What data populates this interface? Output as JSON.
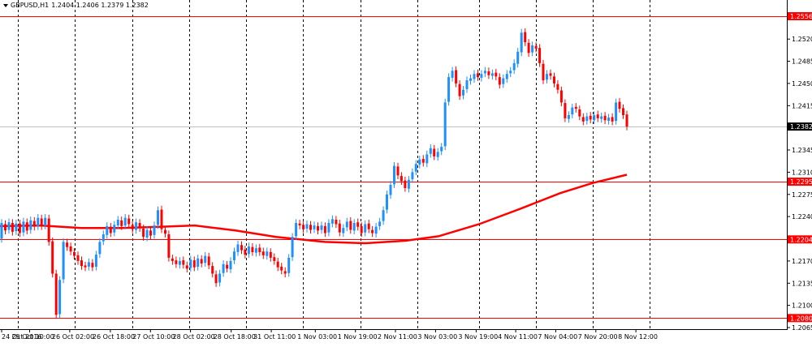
{
  "header": {
    "symbol_timeframe": "GBPUSD,H1",
    "ohlc": "1.2404 1.2406 1.2379 1.2382"
  },
  "colors": {
    "bull": "#1E90FF",
    "bear": "#FF0000",
    "ma": "#FF0000",
    "hline": "#FF0000",
    "grid": "#000000",
    "current_price_line": "#C0C0C0"
  },
  "chart_data": {
    "type": "candlestick",
    "instrument": "GBPUSD",
    "timeframe": "H1",
    "ylim": [
      1.2065,
      1.257
    ],
    "y_ticks": [
      "1.2520",
      "1.2485",
      "1.2450",
      "1.2415",
      "1.2345",
      "1.2310",
      "1.2275",
      "1.2240",
      "1.2170",
      "1.2135",
      "1.2100",
      "1.2065"
    ],
    "x_ticks": [
      "24 Oct 2016",
      "25 Oct 10:00",
      "26 Oct 02:00",
      "26 Oct 18:00",
      "27 Oct 10:00",
      "28 Oct 02:00",
      "28 Oct 18:00",
      "31 Oct 11:00",
      "1 Nov 03:00",
      "1 Nov 19:00",
      "2 Nov 11:00",
      "3 Nov 03:00",
      "3 Nov 19:00",
      "4 Nov 11:00",
      "7 Nov 04:00",
      "7 Nov 20:00",
      "8 Nov 12:00"
    ],
    "horizontal_lines": [
      "1.2556",
      "1.2295",
      "1.2204",
      "1.2080"
    ],
    "current_price": "1.2382",
    "ma_points": [
      [
        0,
        1.2225
      ],
      [
        50,
        1.2226
      ],
      [
        100,
        1.2222
      ],
      [
        150,
        1.2222
      ],
      [
        200,
        1.2224
      ],
      [
        240,
        1.2226
      ],
      [
        290,
        1.2218
      ],
      [
        340,
        1.2208
      ],
      [
        400,
        1.22
      ],
      [
        450,
        1.2198
      ],
      [
        500,
        1.2202
      ],
      [
        540,
        1.2209
      ],
      [
        590,
        1.2228
      ],
      [
        640,
        1.2252
      ],
      [
        690,
        1.2277
      ],
      [
        730,
        1.2293
      ],
      [
        772,
        1.2306
      ]
    ],
    "candles": [
      [
        1.2205,
        1.223
      ],
      [
        1.2228,
        1.2218
      ],
      [
        1.2219,
        1.2231
      ],
      [
        1.223,
        1.2216
      ],
      [
        1.2217,
        1.2229
      ],
      [
        1.2229,
        1.2214
      ],
      [
        1.2215,
        1.2232
      ],
      [
        1.2231,
        1.2218
      ],
      [
        1.2219,
        1.2234
      ],
      [
        1.2233,
        1.2224
      ],
      [
        1.2225,
        1.2238
      ],
      [
        1.2237,
        1.2225
      ],
      [
        1.2226,
        1.2238
      ],
      [
        1.2237,
        1.22
      ],
      [
        1.2201,
        1.215
      ],
      [
        1.215,
        1.2085
      ],
      [
        1.2086,
        1.214
      ],
      [
        1.2141,
        1.22
      ],
      [
        1.2199,
        1.2192
      ],
      [
        1.2193,
        1.2185
      ],
      [
        1.2184,
        1.2178
      ],
      [
        1.2179,
        1.217
      ],
      [
        1.2171,
        1.2162
      ],
      [
        1.2163,
        1.216
      ],
      [
        1.2161,
        1.2168
      ],
      [
        1.2167,
        1.216
      ],
      [
        1.2161,
        1.218
      ],
      [
        1.2181,
        1.22
      ],
      [
        1.2201,
        1.2212
      ],
      [
        1.2211,
        1.2225
      ],
      [
        1.2224,
        1.2214
      ],
      [
        1.2215,
        1.2227
      ],
      [
        1.2226,
        1.2235
      ],
      [
        1.2234,
        1.2225
      ],
      [
        1.2226,
        1.2238
      ],
      [
        1.2237,
        1.2228
      ],
      [
        1.2227,
        1.222
      ],
      [
        1.2219,
        1.2231
      ],
      [
        1.223,
        1.2222
      ],
      [
        1.2221,
        1.2208
      ],
      [
        1.2207,
        1.2219
      ],
      [
        1.2218,
        1.221
      ],
      [
        1.2211,
        1.2226
      ],
      [
        1.2227,
        1.225
      ],
      [
        1.2251,
        1.222
      ],
      [
        1.2219,
        1.2213
      ],
      [
        1.2212,
        1.2175
      ],
      [
        1.2174,
        1.217
      ],
      [
        1.2171,
        1.2165
      ],
      [
        1.2164,
        1.217
      ],
      [
        1.2171,
        1.2164
      ],
      [
        1.2163,
        1.2158
      ],
      [
        1.2159,
        1.2172
      ],
      [
        1.2171,
        1.216
      ],
      [
        1.2161,
        1.2174
      ],
      [
        1.2173,
        1.2166
      ],
      [
        1.2167,
        1.2178
      ],
      [
        1.2177,
        1.2163
      ],
      [
        1.2162,
        1.215
      ],
      [
        1.2149,
        1.2135
      ],
      [
        1.2136,
        1.215
      ],
      [
        1.2151,
        1.2165
      ],
      [
        1.2164,
        1.2158
      ],
      [
        1.2157,
        1.217
      ],
      [
        1.2171,
        1.2185
      ],
      [
        1.2184,
        1.2196
      ],
      [
        1.2195,
        1.2187
      ],
      [
        1.2188,
        1.218
      ],
      [
        1.2181,
        1.2193
      ],
      [
        1.2192,
        1.2184
      ],
      [
        1.2183,
        1.219
      ],
      [
        1.2191,
        1.2184
      ],
      [
        1.2185,
        1.2179
      ],
      [
        1.2178,
        1.2185
      ],
      [
        1.2184,
        1.2175
      ],
      [
        1.2176,
        1.217
      ],
      [
        1.2169,
        1.216
      ],
      [
        1.2161,
        1.2155
      ],
      [
        1.2154,
        1.215
      ],
      [
        1.2151,
        1.2175
      ],
      [
        1.2176,
        1.2208
      ],
      [
        1.2209,
        1.223
      ],
      [
        1.2229,
        1.2226
      ],
      [
        1.2227,
        1.222
      ],
      [
        1.2221,
        1.2228
      ],
      [
        1.2227,
        1.2219
      ],
      [
        1.222,
        1.2226
      ],
      [
        1.2225,
        1.2218
      ],
      [
        1.2219,
        1.2226
      ],
      [
        1.2225,
        1.2214
      ],
      [
        1.2215,
        1.223
      ],
      [
        1.2229,
        1.2236
      ],
      [
        1.2235,
        1.2228
      ],
      [
        1.2229,
        1.2215
      ],
      [
        1.2214,
        1.2222
      ],
      [
        1.2223,
        1.2232
      ],
      [
        1.2233,
        1.2219
      ],
      [
        1.2218,
        1.223
      ],
      [
        1.2231,
        1.2224
      ],
      [
        1.2225,
        1.2214
      ],
      [
        1.2215,
        1.2228
      ],
      [
        1.2229,
        1.222
      ],
      [
        1.2219,
        1.2214
      ],
      [
        1.2213,
        1.2224
      ],
      [
        1.2225,
        1.2232
      ],
      [
        1.2233,
        1.225
      ],
      [
        1.2251,
        1.2275
      ],
      [
        1.2274,
        1.229
      ],
      [
        1.2291,
        1.232
      ],
      [
        1.2319,
        1.2305
      ],
      [
        1.2304,
        1.2296
      ],
      [
        1.2297,
        1.2285
      ],
      [
        1.2284,
        1.2298
      ],
      [
        1.2299,
        1.231
      ],
      [
        1.2311,
        1.2323
      ],
      [
        1.2322,
        1.233
      ],
      [
        1.2331,
        1.2325
      ],
      [
        1.2324,
        1.2338
      ],
      [
        1.2339,
        1.2348
      ],
      [
        1.2347,
        1.2335
      ],
      [
        1.2334,
        1.2342
      ],
      [
        1.2343,
        1.235
      ],
      [
        1.2351,
        1.242
      ],
      [
        1.2421,
        1.246
      ],
      [
        1.2459,
        1.247
      ],
      [
        1.2471,
        1.245
      ],
      [
        1.2449,
        1.243
      ],
      [
        1.2431,
        1.244
      ],
      [
        1.2441,
        1.2455
      ],
      [
        1.2454,
        1.2458
      ],
      [
        1.2457,
        1.2465
      ],
      [
        1.2466,
        1.246
      ],
      [
        1.2459,
        1.2465
      ],
      [
        1.2466,
        1.247
      ],
      [
        1.2469,
        1.2463
      ],
      [
        1.2462,
        1.2466
      ],
      [
        1.2467,
        1.2461
      ],
      [
        1.246,
        1.2448
      ],
      [
        1.2449,
        1.2458
      ],
      [
        1.2457,
        1.2465
      ],
      [
        1.2466,
        1.247
      ],
      [
        1.2471,
        1.2482
      ],
      [
        1.2481,
        1.25
      ],
      [
        1.2499,
        1.253
      ],
      [
        1.2531,
        1.2515
      ],
      [
        1.2514,
        1.2498
      ],
      [
        1.2499,
        1.251
      ],
      [
        1.2509,
        1.2505
      ],
      [
        1.2506,
        1.2482
      ],
      [
        1.2481,
        1.2455
      ],
      [
        1.2456,
        1.2465
      ],
      [
        1.2466,
        1.2462
      ],
      [
        1.2461,
        1.245
      ],
      [
        1.2449,
        1.244
      ],
      [
        1.2439,
        1.242
      ],
      [
        1.2419,
        1.2395
      ],
      [
        1.2394,
        1.24
      ],
      [
        1.2401,
        1.2412
      ],
      [
        1.2413,
        1.241
      ],
      [
        1.2409,
        1.2398
      ],
      [
        1.2397,
        1.239
      ],
      [
        1.2391,
        1.2398
      ],
      [
        1.2399,
        1.2393
      ],
      [
        1.2392,
        1.24
      ],
      [
        1.2401,
        1.2395
      ],
      [
        1.2394,
        1.2398
      ],
      [
        1.2399,
        1.2392
      ],
      [
        1.2391,
        1.2396
      ],
      [
        1.2397,
        1.239
      ],
      [
        1.2391,
        1.242
      ],
      [
        1.2421,
        1.241
      ],
      [
        1.2411,
        1.24
      ],
      [
        1.2401,
        1.2382
      ]
    ]
  }
}
